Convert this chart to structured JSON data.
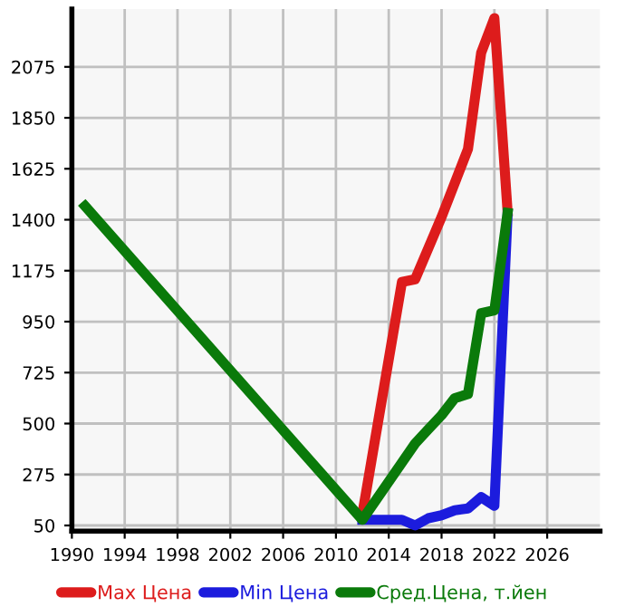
{
  "chart_data": {
    "type": "line",
    "xlim": [
      1990,
      2030
    ],
    "xticks": [
      1990,
      1994,
      1998,
      2002,
      2006,
      2010,
      2014,
      2018,
      2022,
      2026
    ],
    "ylim": [
      25,
      2330
    ],
    "yticks": [
      50,
      275,
      500,
      725,
      950,
      1175,
      1400,
      1625,
      1850,
      2075
    ],
    "grid": true,
    "legend": "bottom",
    "marker": "none",
    "line_style": "solid",
    "series": [
      {
        "name": "Max Цена",
        "color": "#dd1c1c",
        "x": [
          2012,
          2015,
          2016,
          2018,
          2019,
          2020,
          2021,
          2022,
          2023
        ],
        "values": [
          100,
          1125,
          1137,
          1412,
          1562,
          1712,
          2137,
          2290,
          1437
        ]
      },
      {
        "name": "Min Цена",
        "color": "#1c1cdd",
        "x": [
          2012,
          2015,
          2016,
          2017,
          2018,
          2019,
          2020,
          2021,
          2022,
          2023
        ],
        "values": [
          75,
          75,
          50,
          82,
          95,
          117,
          125,
          175,
          137,
          1425
        ]
      },
      {
        "name": "Сред.Цена, т.йен",
        "color": "#0a7a0a",
        "x": [
          1991,
          2012,
          2016,
          2017,
          2018,
          2019,
          2020,
          2021,
          2022,
          2023
        ],
        "values": [
          1460,
          75,
          412,
          475,
          537,
          612,
          630,
          987,
          1000,
          1430
        ]
      }
    ]
  }
}
